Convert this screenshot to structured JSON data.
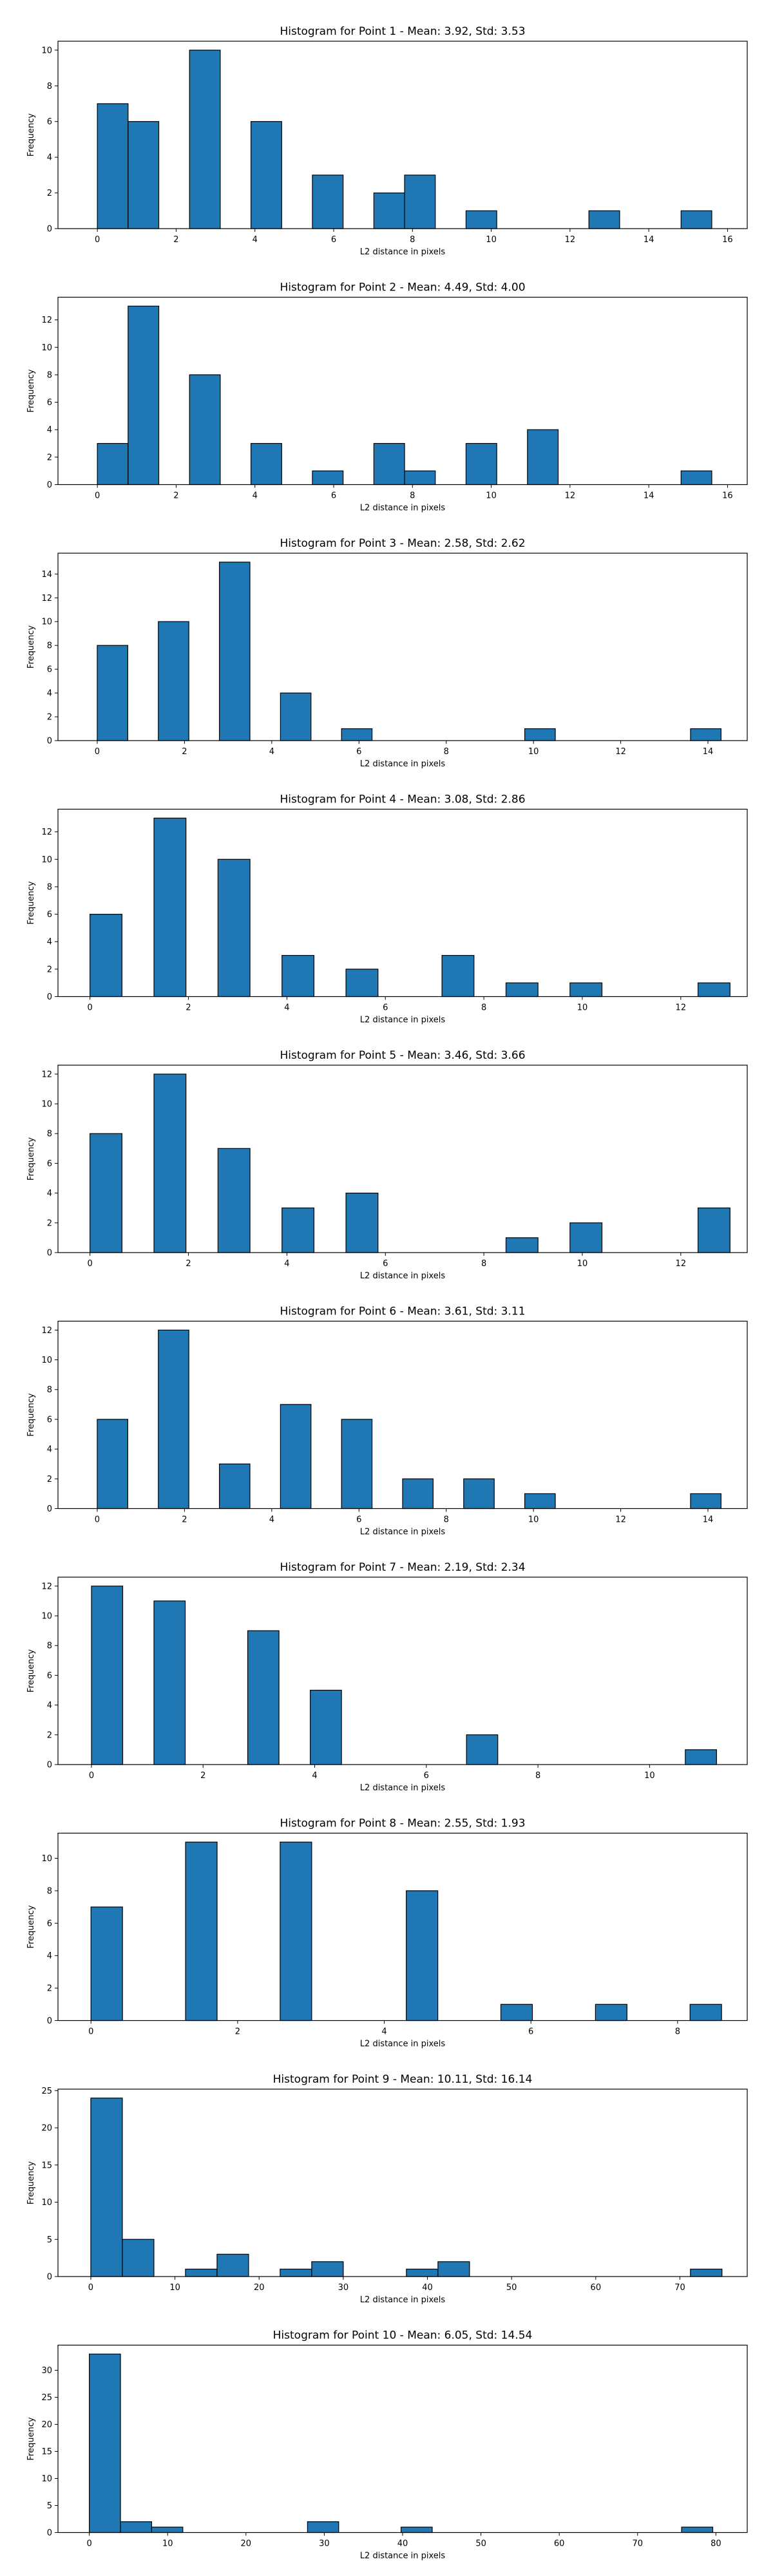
{
  "chart_data": [
    {
      "type": "bar",
      "title": "Histogram for Point 1 - Mean: 3.92, Std: 3.53",
      "xlabel": "L2 distance in pixels",
      "ylabel": "Frequency",
      "xlim": [
        -1.0,
        16.5
      ],
      "ylim": [
        0,
        10.5
      ],
      "xticks": [
        0,
        2,
        4,
        6,
        8,
        10,
        12,
        14,
        16
      ],
      "yticks": [
        0,
        2,
        4,
        6,
        8,
        10
      ],
      "bin_width": 0.78,
      "bins": [
        {
          "x": 0.0,
          "value": 7
        },
        {
          "x": 0.78,
          "value": 6
        },
        {
          "x": 2.34,
          "value": 10
        },
        {
          "x": 3.9,
          "value": 6
        },
        {
          "x": 5.46,
          "value": 3
        },
        {
          "x": 7.02,
          "value": 2
        },
        {
          "x": 7.8,
          "value": 3
        },
        {
          "x": 9.36,
          "value": 1
        },
        {
          "x": 12.48,
          "value": 1
        },
        {
          "x": 14.82,
          "value": 1
        }
      ]
    },
    {
      "type": "bar",
      "title": "Histogram for Point 2 - Mean: 4.49, Std: 4.00",
      "xlabel": "L2 distance in pixels",
      "ylabel": "Frequency",
      "xlim": [
        -1.0,
        16.5
      ],
      "ylim": [
        0,
        13.65
      ],
      "xticks": [
        0,
        2,
        4,
        6,
        8,
        10,
        12,
        14,
        16
      ],
      "yticks": [
        0,
        2,
        4,
        6,
        8,
        10,
        12
      ],
      "bin_width": 0.78,
      "bins": [
        {
          "x": 0.0,
          "value": 3
        },
        {
          "x": 0.78,
          "value": 13
        },
        {
          "x": 2.34,
          "value": 8
        },
        {
          "x": 3.9,
          "value": 3
        },
        {
          "x": 5.46,
          "value": 1
        },
        {
          "x": 7.02,
          "value": 3
        },
        {
          "x": 7.8,
          "value": 1
        },
        {
          "x": 9.36,
          "value": 3
        },
        {
          "x": 10.92,
          "value": 4
        },
        {
          "x": 14.82,
          "value": 1
        }
      ]
    },
    {
      "type": "bar",
      "title": "Histogram for Point 3 - Mean: 2.58, Std: 2.62",
      "xlabel": "L2 distance in pixels",
      "ylabel": "Frequency",
      "xlim": [
        -0.9,
        14.9
      ],
      "ylim": [
        0,
        15.75
      ],
      "xticks": [
        0,
        2,
        4,
        6,
        8,
        10,
        12,
        14
      ],
      "yticks": [
        0,
        2,
        4,
        6,
        8,
        10,
        12,
        14
      ],
      "bin_width": 0.7,
      "bins": [
        {
          "x": 0.0,
          "value": 8
        },
        {
          "x": 1.4,
          "value": 10
        },
        {
          "x": 2.8,
          "value": 15
        },
        {
          "x": 4.2,
          "value": 4
        },
        {
          "x": 5.6,
          "value": 1
        },
        {
          "x": 9.8,
          "value": 1
        },
        {
          "x": 13.6,
          "value": 1
        }
      ]
    },
    {
      "type": "bar",
      "title": "Histogram for Point 4 - Mean: 3.08, Std: 2.86",
      "xlabel": "L2 distance in pixels",
      "ylabel": "Frequency",
      "xlim": [
        -0.65,
        13.35
      ],
      "ylim": [
        0,
        13.65
      ],
      "xticks": [
        0,
        2,
        4,
        6,
        8,
        10,
        12
      ],
      "yticks": [
        0,
        2,
        4,
        6,
        8,
        10,
        12
      ],
      "bin_width": 0.65,
      "bins": [
        {
          "x": 0.0,
          "value": 6
        },
        {
          "x": 1.3,
          "value": 13
        },
        {
          "x": 2.6,
          "value": 10
        },
        {
          "x": 3.9,
          "value": 3
        },
        {
          "x": 5.2,
          "value": 2
        },
        {
          "x": 7.15,
          "value": 3
        },
        {
          "x": 8.45,
          "value": 1
        },
        {
          "x": 9.75,
          "value": 1
        },
        {
          "x": 12.35,
          "value": 1
        }
      ]
    },
    {
      "type": "bar",
      "title": "Histogram for Point 5 - Mean: 3.46, Std: 3.66",
      "xlabel": "L2 distance in pixels",
      "ylabel": "Frequency",
      "xlim": [
        -0.65,
        13.35
      ],
      "ylim": [
        0,
        12.6
      ],
      "xticks": [
        0,
        2,
        4,
        6,
        8,
        10,
        12
      ],
      "yticks": [
        0,
        2,
        4,
        6,
        8,
        10,
        12
      ],
      "bin_width": 0.65,
      "bins": [
        {
          "x": 0.0,
          "value": 8
        },
        {
          "x": 1.3,
          "value": 12
        },
        {
          "x": 2.6,
          "value": 7
        },
        {
          "x": 3.9,
          "value": 3
        },
        {
          "x": 5.2,
          "value": 4
        },
        {
          "x": 8.45,
          "value": 1
        },
        {
          "x": 9.75,
          "value": 2
        },
        {
          "x": 12.35,
          "value": 3
        }
      ]
    },
    {
      "type": "bar",
      "title": "Histogram for Point 6 - Mean: 3.61, Std: 3.11",
      "xlabel": "L2 distance in pixels",
      "ylabel": "Frequency",
      "xlim": [
        -0.9,
        14.9
      ],
      "ylim": [
        0,
        12.6
      ],
      "xticks": [
        0,
        2,
        4,
        6,
        8,
        10,
        12,
        14
      ],
      "yticks": [
        0,
        2,
        4,
        6,
        8,
        10,
        12
      ],
      "bin_width": 0.7,
      "bins": [
        {
          "x": 0.0,
          "value": 6
        },
        {
          "x": 1.4,
          "value": 12
        },
        {
          "x": 2.8,
          "value": 3
        },
        {
          "x": 4.2,
          "value": 7
        },
        {
          "x": 5.6,
          "value": 6
        },
        {
          "x": 7.0,
          "value": 2
        },
        {
          "x": 8.4,
          "value": 2
        },
        {
          "x": 9.8,
          "value": 1
        },
        {
          "x": 13.6,
          "value": 1
        }
      ]
    },
    {
      "type": "bar",
      "title": "Histogram for Point 7 - Mean: 2.19, Std: 2.34",
      "xlabel": "L2 distance in pixels",
      "ylabel": "Frequency",
      "xlim": [
        -0.6,
        11.75
      ],
      "ylim": [
        0,
        12.6
      ],
      "xticks": [
        0,
        2,
        4,
        6,
        8,
        10
      ],
      "yticks": [
        0,
        2,
        4,
        6,
        8,
        10,
        12
      ],
      "bin_width": 0.56,
      "bins": [
        {
          "x": 0.0,
          "value": 12
        },
        {
          "x": 1.12,
          "value": 11
        },
        {
          "x": 2.8,
          "value": 9
        },
        {
          "x": 3.92,
          "value": 5
        },
        {
          "x": 6.72,
          "value": 2
        },
        {
          "x": 10.64,
          "value": 1
        }
      ]
    },
    {
      "type": "bar",
      "title": "Histogram for Point 8 - Mean: 2.55, Std: 1.93",
      "xlabel": "L2 distance in pixels",
      "ylabel": "Frequency",
      "xlim": [
        -0.45,
        8.95
      ],
      "ylim": [
        0,
        11.55
      ],
      "xticks": [
        0,
        2,
        4,
        6,
        8
      ],
      "yticks": [
        0,
        2,
        4,
        6,
        8,
        10
      ],
      "bin_width": 0.43,
      "bins": [
        {
          "x": 0.0,
          "value": 7
        },
        {
          "x": 1.29,
          "value": 11
        },
        {
          "x": 2.58,
          "value": 11
        },
        {
          "x": 4.3,
          "value": 8
        },
        {
          "x": 5.59,
          "value": 1
        },
        {
          "x": 6.88,
          "value": 1
        },
        {
          "x": 8.17,
          "value": 1
        }
      ]
    },
    {
      "type": "bar",
      "title": "Histogram for Point 9 - Mean: 10.11, Std: 16.14",
      "xlabel": "L2 distance in pixels",
      "ylabel": "Frequency",
      "xlim": [
        -3.9,
        78.0
      ],
      "ylim": [
        0,
        25.2
      ],
      "xticks": [
        0,
        10,
        20,
        30,
        40,
        50,
        60,
        70
      ],
      "yticks": [
        0,
        5,
        10,
        15,
        20,
        25
      ],
      "bin_width": 3.75,
      "bins": [
        {
          "x": 0.0,
          "value": 24
        },
        {
          "x": 3.75,
          "value": 5
        },
        {
          "x": 11.25,
          "value": 1
        },
        {
          "x": 15.0,
          "value": 3
        },
        {
          "x": 22.5,
          "value": 1
        },
        {
          "x": 26.25,
          "value": 2
        },
        {
          "x": 37.5,
          "value": 1
        },
        {
          "x": 41.25,
          "value": 2
        },
        {
          "x": 71.25,
          "value": 1
        }
      ]
    },
    {
      "type": "bar",
      "title": "Histogram for Point 10 - Mean: 6.05, Std: 14.54",
      "xlabel": "L2 distance in pixels",
      "ylabel": "Frequency",
      "xlim": [
        -4.0,
        84.0
      ],
      "ylim": [
        0,
        34.65
      ],
      "xticks": [
        0,
        10,
        20,
        30,
        40,
        50,
        60,
        70,
        80
      ],
      "yticks": [
        0,
        5,
        10,
        15,
        20,
        25,
        30
      ],
      "bin_width": 3.98,
      "bins": [
        {
          "x": 0.0,
          "value": 33
        },
        {
          "x": 3.98,
          "value": 2
        },
        {
          "x": 7.96,
          "value": 1
        },
        {
          "x": 27.86,
          "value": 2
        },
        {
          "x": 39.8,
          "value": 1
        },
        {
          "x": 75.62,
          "value": 1
        }
      ]
    }
  ],
  "colors": {
    "bar_fill": "#1f77b4",
    "bar_edge": "#000000",
    "axis": "#000000",
    "text": "#000000",
    "background": "#ffffff"
  }
}
